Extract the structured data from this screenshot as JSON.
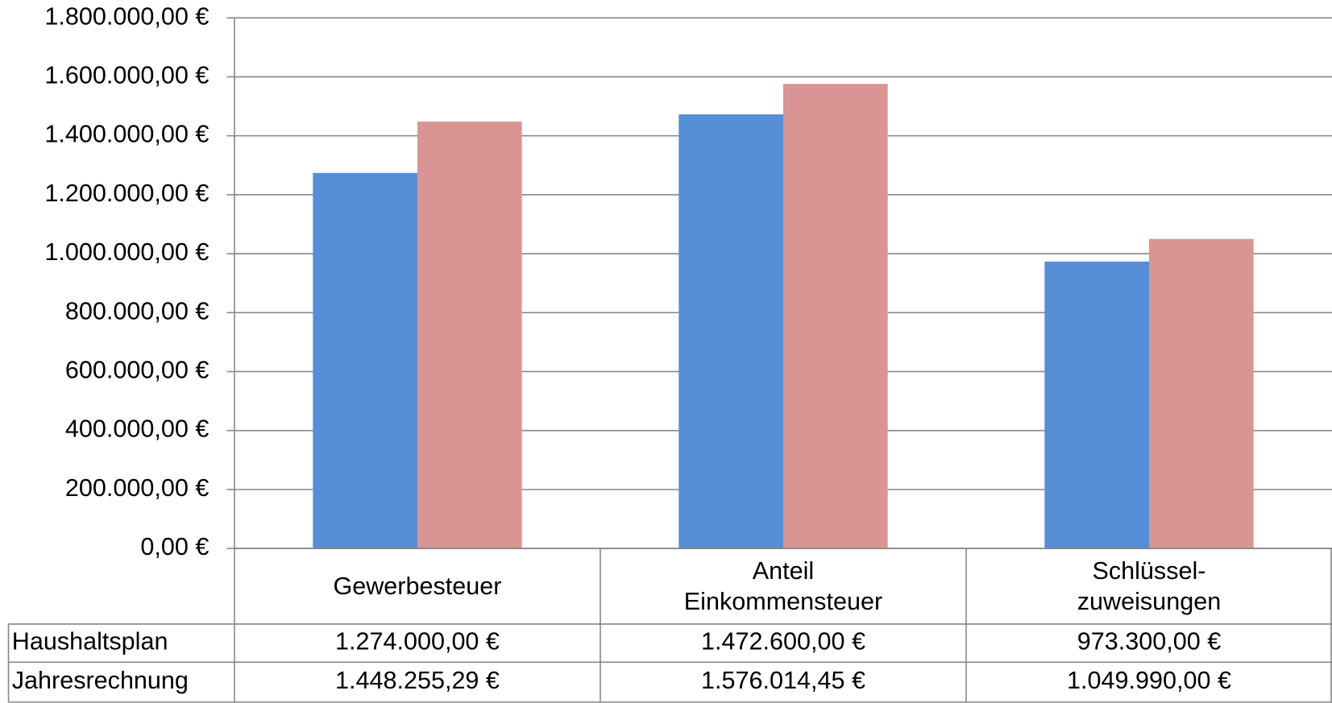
{
  "chart_data": {
    "type": "bar",
    "categories": [
      "Gewerbesteuer",
      "Anteil\nEinkommensteuer",
      "Schlüssel-\nzuweisungen"
    ],
    "series": [
      {
        "name": "Haushaltsplan",
        "color": "#558ed5",
        "values": [
          1274000,
          1472600,
          973300
        ],
        "value_labels": [
          "1.274.000,00 €",
          "1.472.600,00 €",
          "973.300,00 €"
        ]
      },
      {
        "name": "Jahresrechnung",
        "color": "#d99594",
        "values": [
          1448255.29,
          1576014.45,
          1049990
        ],
        "value_labels": [
          "1.448.255,29 €",
          "1.576.014,45 €",
          "1.049.990,00 €"
        ]
      }
    ],
    "ylim": [
      0,
      1800000
    ],
    "yticks": [
      {
        "value": 0,
        "label": "0,00 €"
      },
      {
        "value": 200000,
        "label": "200.000,00 €"
      },
      {
        "value": 400000,
        "label": "400.000,00 €"
      },
      {
        "value": 600000,
        "label": "600.000,00 €"
      },
      {
        "value": 800000,
        "label": "800.000,00 €"
      },
      {
        "value": 1000000,
        "label": "1.000.000,00 €"
      },
      {
        "value": 1200000,
        "label": "1.200.000,00 €"
      },
      {
        "value": 1400000,
        "label": "1.400.000,00 €"
      },
      {
        "value": 1600000,
        "label": "1.600.000,00 €"
      },
      {
        "value": 1800000,
        "label": "1.800.000,00 €"
      }
    ],
    "grid": true
  }
}
